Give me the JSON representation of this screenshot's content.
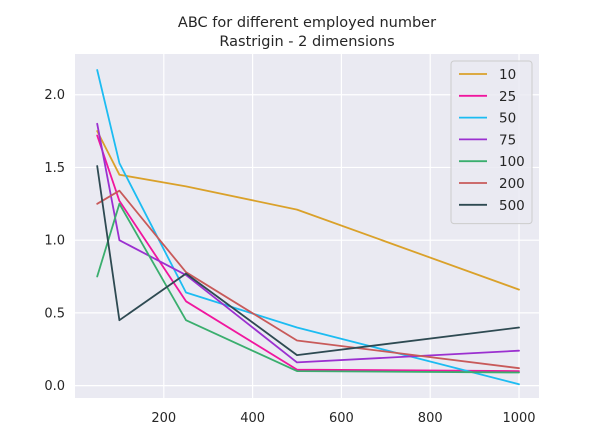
{
  "chart_data": {
    "type": "line",
    "title": "ABC for different employed number",
    "subtitle": "Rastrigin - 2 dimensions",
    "xlabel": "",
    "ylabel": "",
    "x": [
      50,
      100,
      250,
      500,
      1000
    ],
    "xlim": [
      0,
      1045
    ],
    "ylim": [
      -0.085,
      2.28
    ],
    "xticks": [
      200,
      400,
      600,
      800,
      1000
    ],
    "yticks": [
      0.0,
      0.5,
      1.0,
      1.5,
      2.0
    ],
    "xtick_labels": [
      "200",
      "400",
      "600",
      "800",
      "1000"
    ],
    "ytick_labels": [
      "0.0",
      "0.5",
      "1.0",
      "1.5",
      "2.0"
    ],
    "grid": true,
    "legend_position": "top-right",
    "series": [
      {
        "name": "10",
        "color": "#DAA12A",
        "values": [
          1.75,
          1.45,
          1.37,
          1.21,
          0.66
        ]
      },
      {
        "name": "25",
        "color": "#F0169E",
        "values": [
          1.72,
          1.27,
          0.58,
          0.11,
          0.1
        ]
      },
      {
        "name": "50",
        "color": "#1CBCF2",
        "values": [
          2.17,
          1.53,
          0.64,
          0.4,
          0.01
        ]
      },
      {
        "name": "75",
        "color": "#9B30D0",
        "values": [
          1.8,
          1.0,
          0.76,
          0.16,
          0.24
        ]
      },
      {
        "name": "100",
        "color": "#3AAE6E",
        "values": [
          0.75,
          1.25,
          0.45,
          0.1,
          0.09
        ]
      },
      {
        "name": "200",
        "color": "#C85A5A",
        "values": [
          1.25,
          1.34,
          0.78,
          0.31,
          0.12
        ]
      },
      {
        "name": "500",
        "color": "#2E4A52",
        "values": [
          1.51,
          0.45,
          0.77,
          0.21,
          0.4
        ]
      }
    ]
  }
}
